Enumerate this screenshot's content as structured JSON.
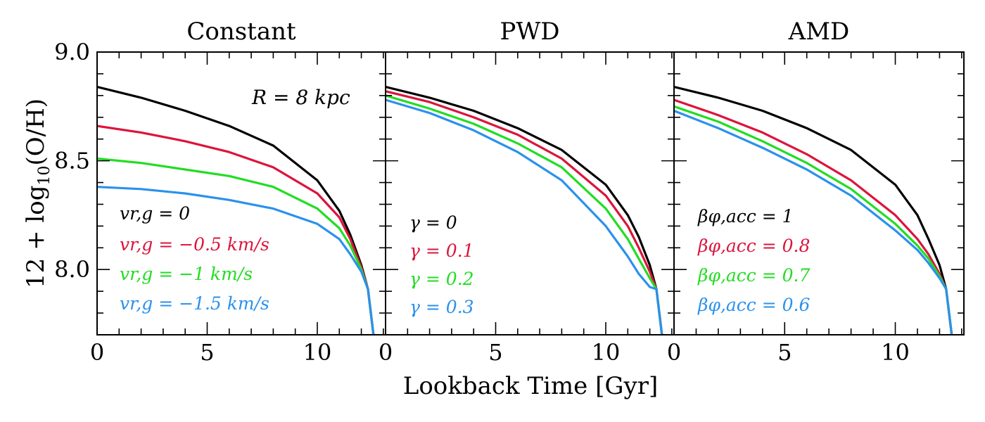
{
  "figure": {
    "xlabel": "Lookback Time [Gyr]",
    "ylabel_main": "12 + log",
    "ylabel_sub": "10",
    "ylabel_end": "(O/H)",
    "annotation": "R = 8 kpc"
  },
  "chart_data": [
    {
      "type": "line",
      "title": "Constant",
      "xlim": [
        0,
        13.1
      ],
      "ylim": [
        7.7,
        9.0
      ],
      "xticks": [
        "0",
        "5",
        "10"
      ],
      "yticks": [
        "9.0",
        "8.5",
        "8.0"
      ],
      "x": [
        0,
        2,
        4,
        6,
        8,
        10,
        11,
        11.5,
        12,
        12.3,
        12.55
      ],
      "series": [
        {
          "name": "v_{r,g} = 0",
          "label": "vr,g = 0",
          "color": "#000000",
          "values": [
            8.84,
            8.79,
            8.73,
            8.66,
            8.57,
            8.41,
            8.27,
            8.16,
            8.02,
            7.91,
            7.7
          ]
        },
        {
          "name": "v_{r,g} = −0.5 km/s",
          "label": "vr,g = −0.5 km/s",
          "color": "#DC143C",
          "values": [
            8.66,
            8.63,
            8.59,
            8.54,
            8.47,
            8.35,
            8.24,
            8.14,
            8.01,
            7.91,
            7.7
          ]
        },
        {
          "name": "v_{r,g} = −1 km/s",
          "label": "vr,g = −1 km/s",
          "color": "#22DD22",
          "values": [
            8.51,
            8.49,
            8.46,
            8.43,
            8.38,
            8.28,
            8.19,
            8.11,
            8.0,
            7.91,
            7.7
          ]
        },
        {
          "name": "v_{r,g} = −1.5 km/s",
          "label": "vr,g = −1.5 km/s",
          "color": "#2A91EC",
          "values": [
            8.38,
            8.37,
            8.35,
            8.32,
            8.28,
            8.21,
            8.14,
            8.07,
            7.99,
            7.91,
            7.7
          ]
        }
      ]
    },
    {
      "type": "line",
      "title": "PWD",
      "xlim": [
        0,
        13.1
      ],
      "ylim": [
        7.7,
        9.0
      ],
      "xticks": [
        "0",
        "5",
        "10"
      ],
      "yticks": [],
      "x": [
        0,
        2,
        4,
        6,
        8,
        10,
        11,
        11.5,
        12,
        12.3,
        12.55
      ],
      "series": [
        {
          "name": "γ = 0",
          "label": "γ = 0",
          "color": "#000000",
          "values": [
            8.84,
            8.79,
            8.73,
            8.65,
            8.55,
            8.39,
            8.25,
            8.15,
            8.02,
            7.91,
            7.7
          ]
        },
        {
          "name": "γ = 0.1",
          "label": "γ = 0.1",
          "color": "#DC143C",
          "values": [
            8.82,
            8.77,
            8.7,
            8.62,
            8.51,
            8.34,
            8.2,
            8.1,
            7.99,
            7.91,
            7.7
          ]
        },
        {
          "name": "γ = 0.2",
          "label": "γ = 0.2",
          "color": "#22DD22",
          "values": [
            8.8,
            8.74,
            8.67,
            8.58,
            8.47,
            8.28,
            8.14,
            8.05,
            7.96,
            7.91,
            7.7
          ]
        },
        {
          "name": "γ = 0.3",
          "label": "γ = 0.3",
          "color": "#2A91EC",
          "values": [
            8.78,
            8.72,
            8.64,
            8.54,
            8.41,
            8.2,
            8.06,
            7.98,
            7.92,
            7.91,
            7.7
          ]
        }
      ]
    },
    {
      "type": "line",
      "title": "AMD",
      "xlim": [
        0,
        13.1
      ],
      "ylim": [
        7.7,
        9.0
      ],
      "xticks": [
        "0",
        "5",
        "10"
      ],
      "yticks": [],
      "x": [
        0,
        2,
        4,
        6,
        8,
        10,
        11,
        11.5,
        12,
        12.3,
        12.55
      ],
      "series": [
        {
          "name": "β_{φ,acc} = 1",
          "label": "βφ,acc = 1",
          "color": "#000000",
          "values": [
            8.84,
            8.79,
            8.73,
            8.65,
            8.55,
            8.39,
            8.25,
            8.14,
            8.02,
            7.91,
            7.7
          ]
        },
        {
          "name": "β_{φ,acc} = 0.8",
          "label": "βφ,acc = 0.8",
          "color": "#DC143C",
          "values": [
            8.78,
            8.71,
            8.63,
            8.53,
            8.41,
            8.25,
            8.14,
            8.07,
            7.98,
            7.91,
            7.7
          ]
        },
        {
          "name": "β_{φ,acc} = 0.7",
          "label": "βφ,acc = 0.7",
          "color": "#22DD22",
          "values": [
            8.75,
            8.68,
            8.59,
            8.49,
            8.37,
            8.21,
            8.11,
            8.05,
            7.97,
            7.91,
            7.7
          ]
        },
        {
          "name": "β_{φ,acc} = 0.6",
          "label": "βφ,acc = 0.6",
          "color": "#2A91EC",
          "values": [
            8.73,
            8.65,
            8.56,
            8.46,
            8.34,
            8.18,
            8.09,
            8.03,
            7.96,
            7.91,
            7.7
          ]
        }
      ]
    }
  ]
}
